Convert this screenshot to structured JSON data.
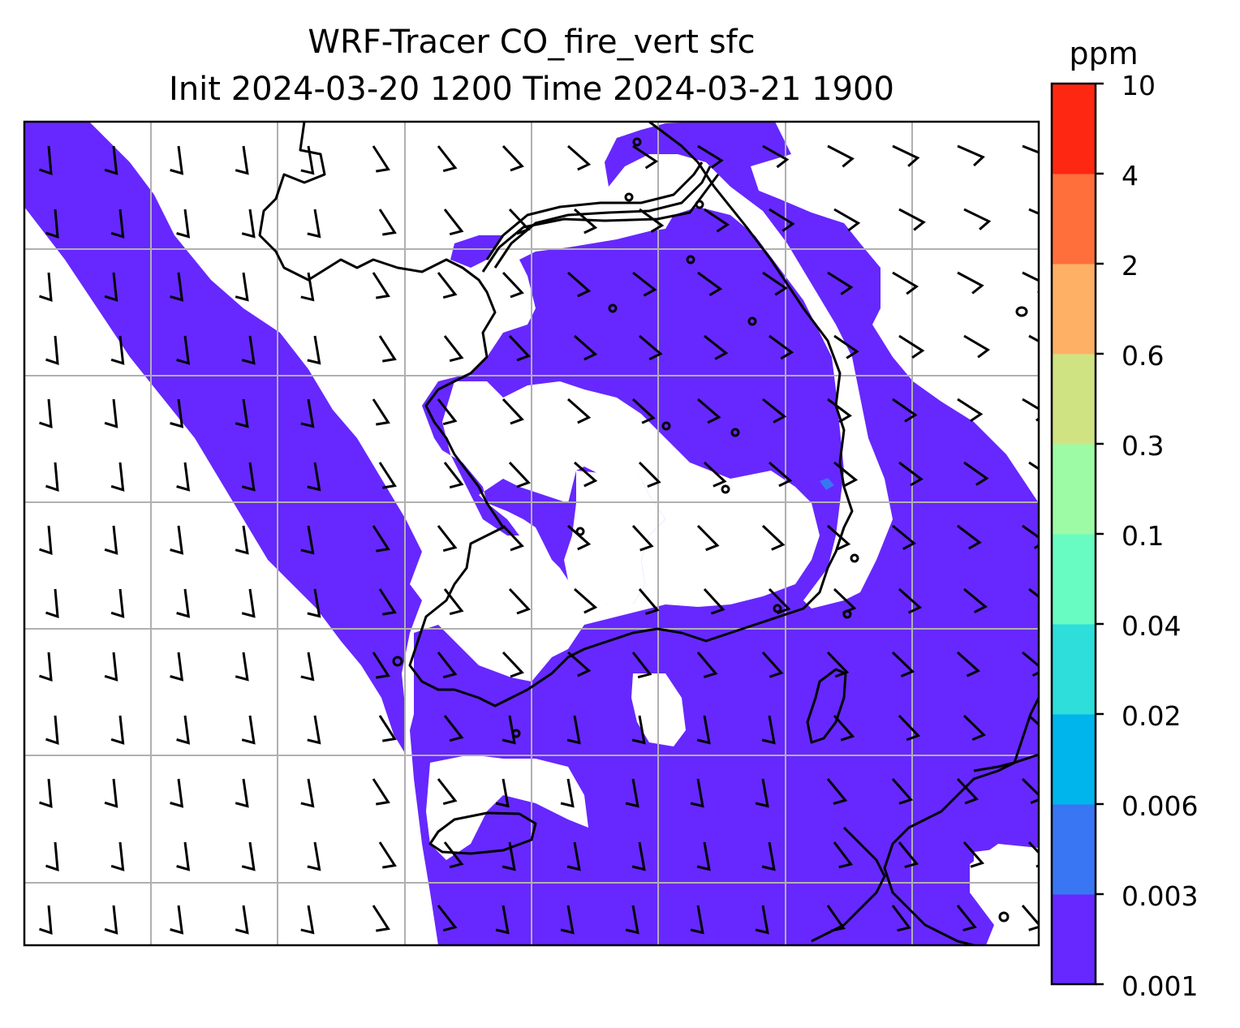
{
  "title": {
    "line1": "WRF-Tracer CO_fire_vert sfc",
    "line2": "Init 2024-03-20 1200 Time 2024-03-21 1900"
  },
  "colorbar": {
    "unit": "ppm",
    "levels": [
      "0.001",
      "0.003",
      "0.006",
      "0.02",
      "0.04",
      "0.1",
      "0.3",
      "0.6",
      "2",
      "4",
      "10"
    ],
    "colors": [
      "#6628fe",
      "#3876f4",
      "#00b5eb",
      "#2ddedb",
      "#68fcc2",
      "#9cfba4",
      "#d0e383",
      "#feb065",
      "#fe6f3c",
      "#fe2712"
    ]
  },
  "map": {
    "plume_color": "#6628fe",
    "small_patch_color": "#3876f4",
    "gridline_color": "#b0b0b0",
    "features": [
      "wind-barbs",
      "coastlines",
      "lat-lon-gridlines"
    ]
  }
}
